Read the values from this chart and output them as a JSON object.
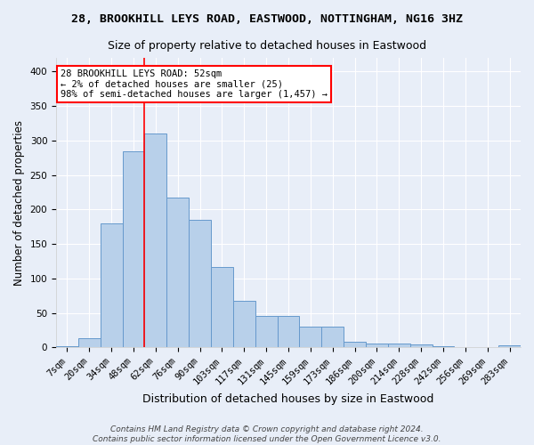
{
  "title": "28, BROOKHILL LEYS ROAD, EASTWOOD, NOTTINGHAM, NG16 3HZ",
  "subtitle": "Size of property relative to detached houses in Eastwood",
  "xlabel": "Distribution of detached houses by size in Eastwood",
  "ylabel": "Number of detached properties",
  "bar_labels": [
    "7sqm",
    "20sqm",
    "34sqm",
    "48sqm",
    "62sqm",
    "76sqm",
    "90sqm",
    "103sqm",
    "117sqm",
    "131sqm",
    "145sqm",
    "159sqm",
    "173sqm",
    "186sqm",
    "200sqm",
    "214sqm",
    "228sqm",
    "242sqm",
    "256sqm",
    "269sqm",
    "283sqm"
  ],
  "bar_heights": [
    2,
    14,
    180,
    285,
    310,
    217,
    185,
    117,
    68,
    46,
    45,
    30,
    30,
    8,
    6,
    5,
    4,
    2,
    1,
    1,
    3
  ],
  "bar_color": "#b8d0ea",
  "bar_edge_color": "#6699cc",
  "annotation_text": "28 BROOKHILL LEYS ROAD: 52sqm\n← 2% of detached houses are smaller (25)\n98% of semi-detached houses are larger (1,457) →",
  "vline_x": 3.5,
  "vline_color": "red",
  "annotation_box_color": "white",
  "annotation_box_edge": "red",
  "footer_line1": "Contains HM Land Registry data © Crown copyright and database right 2024.",
  "footer_line2": "Contains public sector information licensed under the Open Government Licence v3.0.",
  "ylim": [
    0,
    420
  ],
  "yticks": [
    0,
    50,
    100,
    150,
    200,
    250,
    300,
    350,
    400
  ],
  "background_color": "#e8eef8",
  "grid_color": "white",
  "title_fontsize": 9.5,
  "subtitle_fontsize": 9.0,
  "ylabel_fontsize": 8.5,
  "xlabel_fontsize": 9.0,
  "tick_fontsize": 7.5,
  "annot_fontsize": 7.5,
  "footer_fontsize": 6.5
}
